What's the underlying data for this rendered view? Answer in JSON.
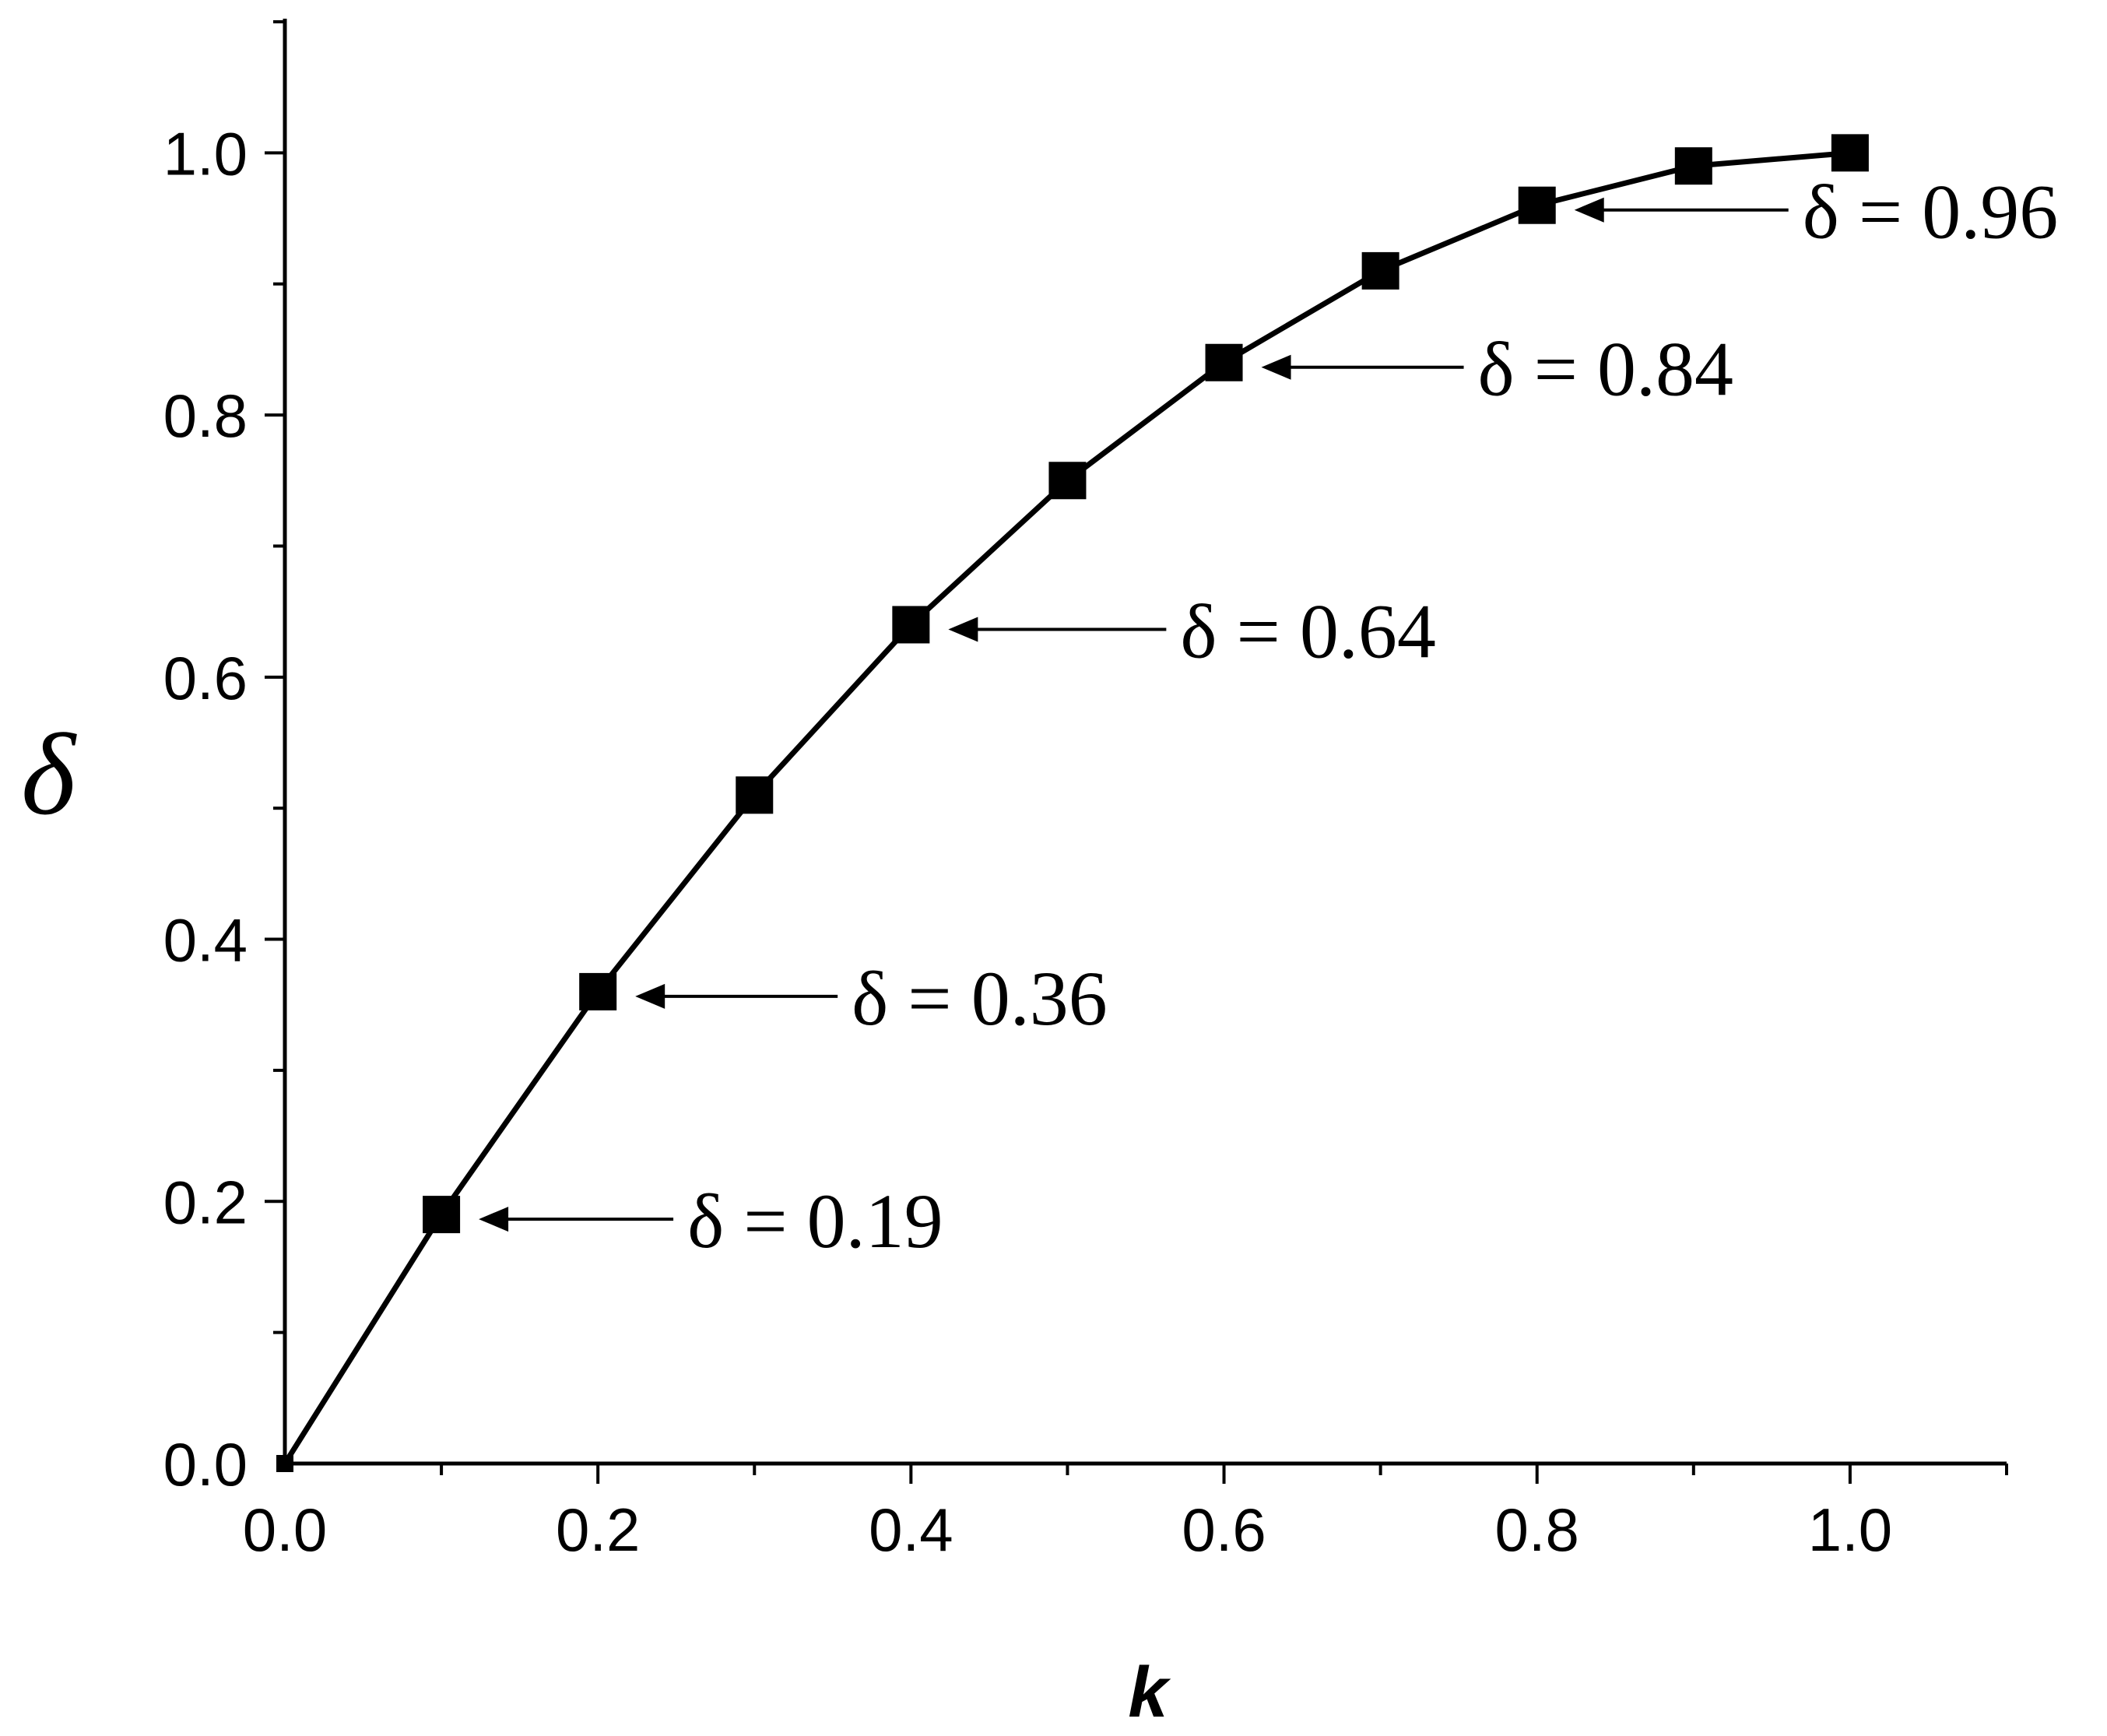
{
  "chart_data": {
    "type": "line",
    "xlabel": "k",
    "ylabel": "δ",
    "xlim": [
      0,
      1.1
    ],
    "ylim": [
      0,
      1.1
    ],
    "x_ticks": [
      "0.0",
      "0.2",
      "0.4",
      "0.6",
      "0.8",
      "1.0"
    ],
    "y_ticks": [
      "0.0",
      "0.2",
      "0.4",
      "0.6",
      "0.8",
      "1.0"
    ],
    "grid": false,
    "legend": "none",
    "marker": "square",
    "color": "#000000",
    "series": [
      {
        "x": [
          0.0,
          0.1,
          0.2,
          0.3,
          0.4,
          0.5,
          0.6,
          0.7,
          0.8,
          0.9,
          1.0
        ],
        "y": [
          0.0,
          0.19,
          0.36,
          0.51,
          0.64,
          0.75,
          0.84,
          0.91,
          0.96,
          0.99,
          1.0
        ]
      }
    ],
    "annotations": [
      {
        "text": "δ = 0.19",
        "x": 0.1,
        "y": 0.19
      },
      {
        "text": "δ = 0.36",
        "x": 0.2,
        "y": 0.36
      },
      {
        "text": "δ = 0.64",
        "x": 0.4,
        "y": 0.64
      },
      {
        "text": "δ = 0.84",
        "x": 0.6,
        "y": 0.84
      },
      {
        "text": "δ = 0.96",
        "x": 0.8,
        "y": 0.96
      }
    ]
  }
}
